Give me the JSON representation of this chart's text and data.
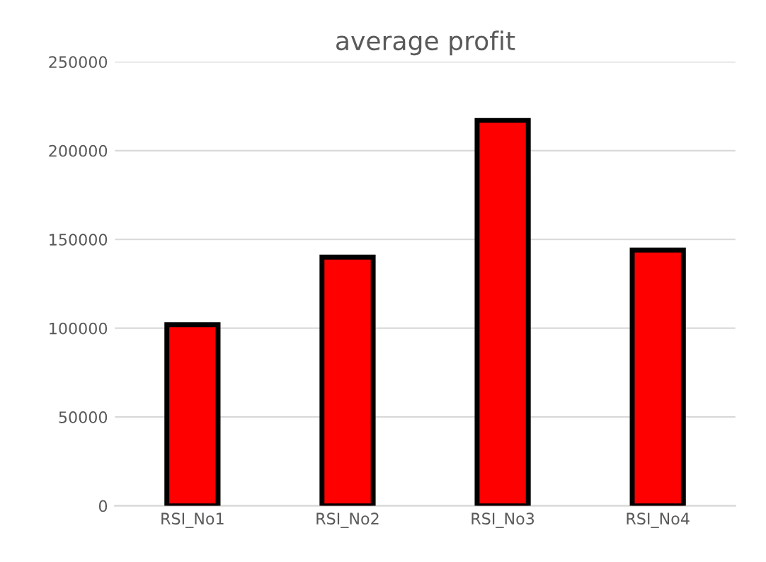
{
  "chart_data": {
    "type": "bar",
    "title": "average profit",
    "categories": [
      "RSI_No1",
      "RSI_No2",
      "RSI_No3",
      "RSI_No4"
    ],
    "values": [
      102000,
      140000,
      217000,
      144000
    ],
    "color": "#ff0000",
    "ylim": [
      0,
      250000
    ],
    "yticks": [
      0,
      50000,
      100000,
      150000,
      200000,
      250000
    ],
    "grid": "y"
  }
}
